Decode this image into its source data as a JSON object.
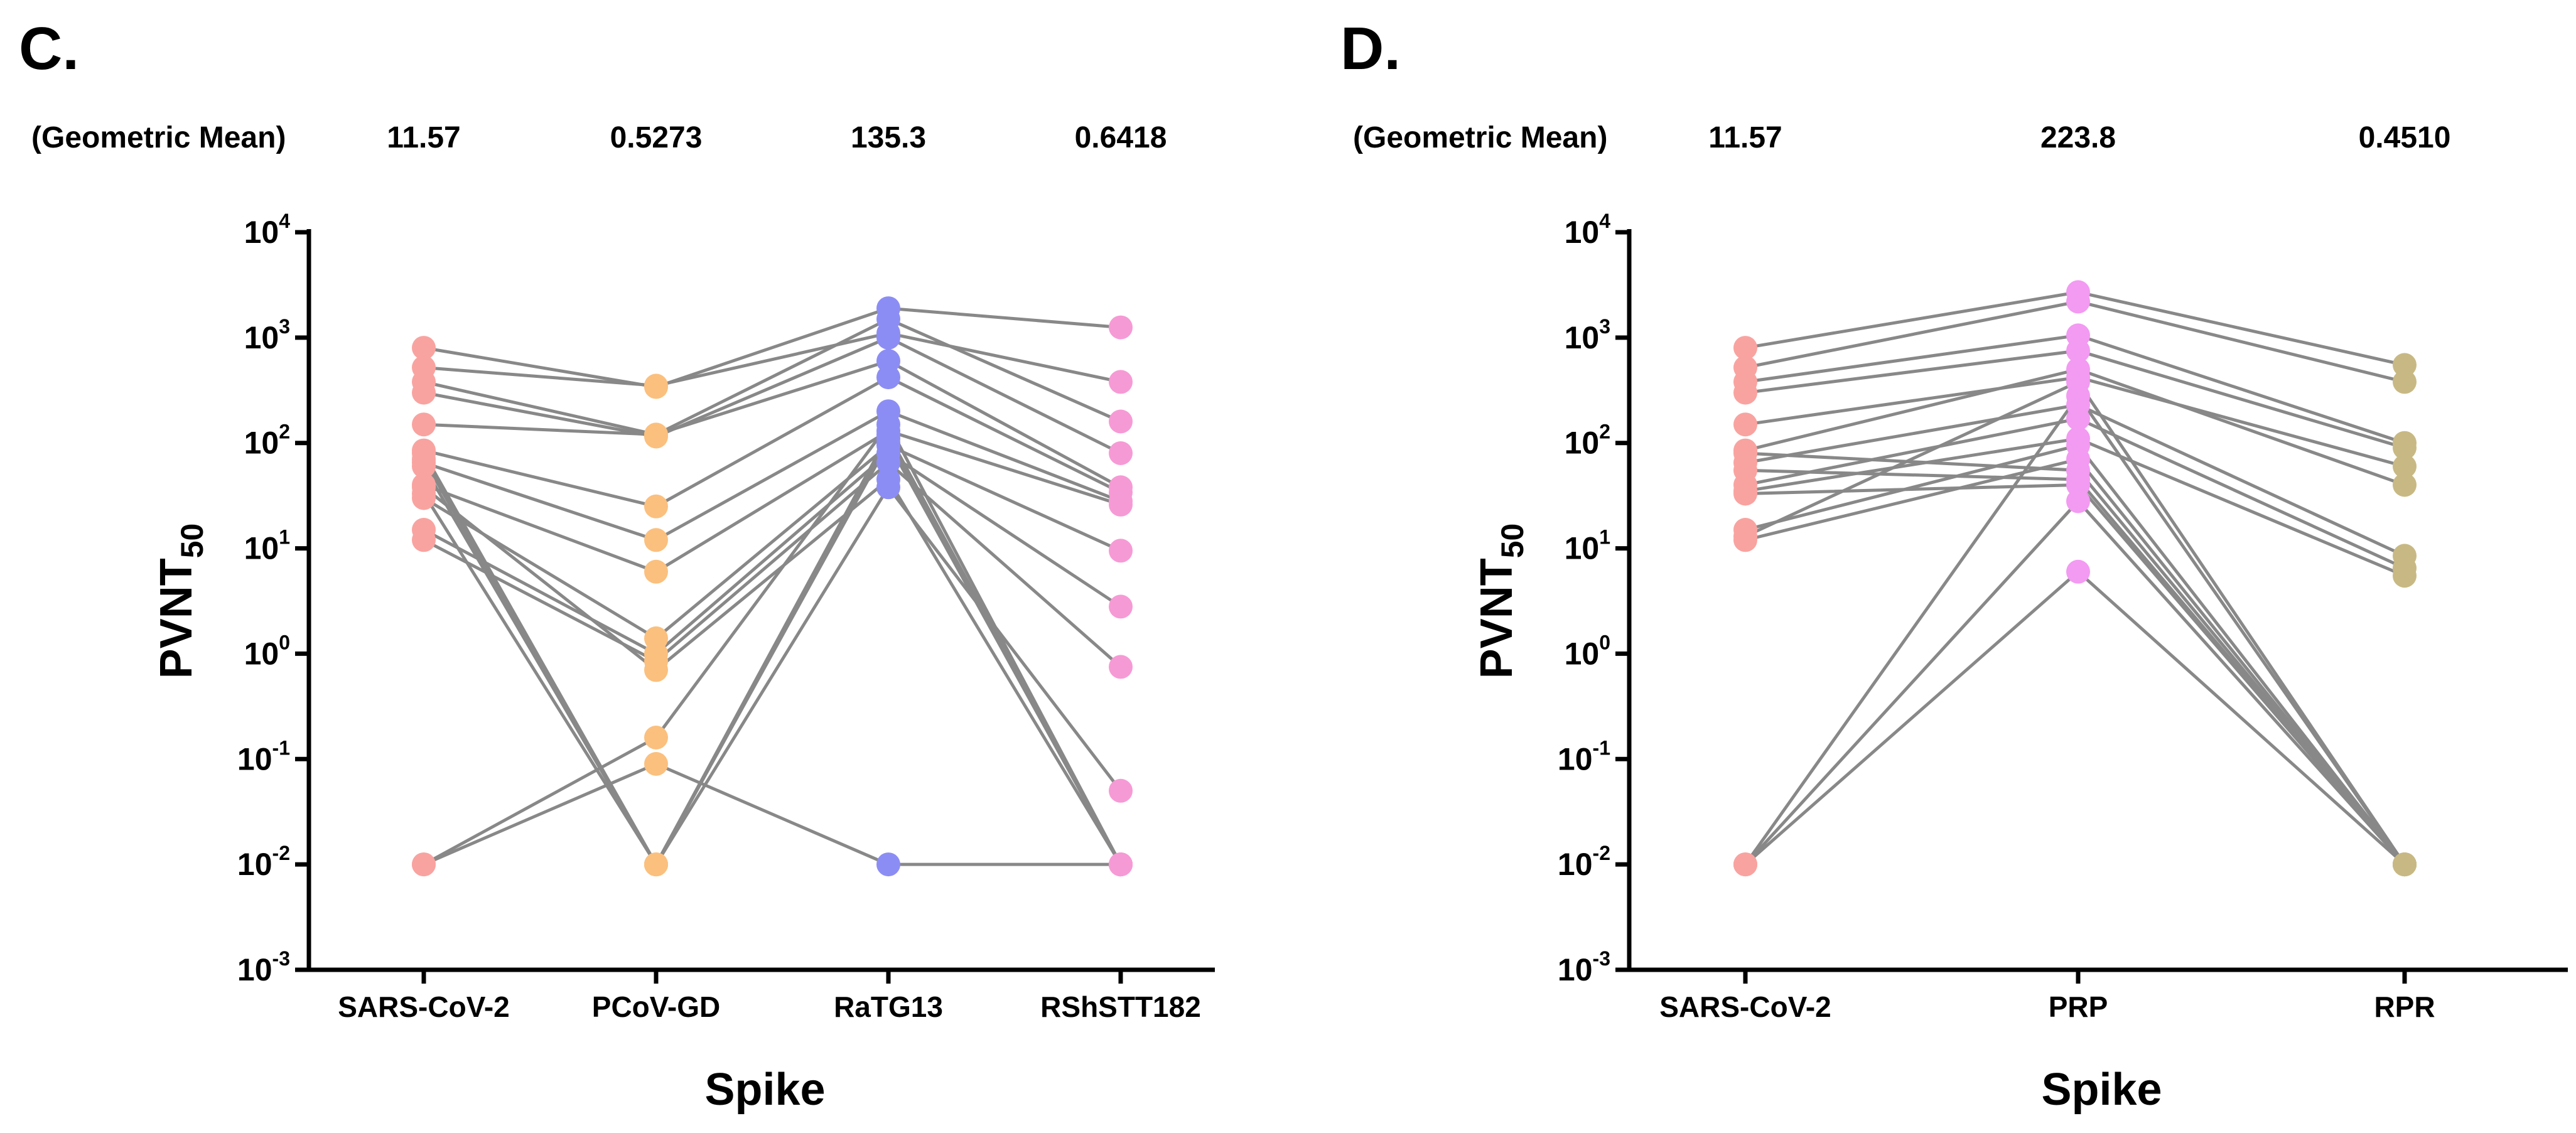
{
  "chart_data": [
    {
      "panel": "C.",
      "type": "scatter",
      "geometric_mean_label": "(Geometric Mean)",
      "categories": [
        "SARS-CoV-2",
        "PCoV-GD",
        "RaTG13",
        "RShSTT182"
      ],
      "geometric_means": [
        "11.57",
        "0.5273",
        "135.3",
        "0.6418"
      ],
      "xlabel": "Spike",
      "ylabel": "PVNT",
      "ylabel_subscript": "50",
      "yscale": "log10",
      "ylim": [
        0.001,
        10000
      ],
      "yticks": [
        {
          "base": "10",
          "exp": "4",
          "value": 10000
        },
        {
          "base": "10",
          "exp": "3",
          "value": 1000
        },
        {
          "base": "10",
          "exp": "2",
          "value": 100
        },
        {
          "base": "10",
          "exp": "1",
          "value": 10
        },
        {
          "base": "10",
          "exp": "0",
          "value": 1
        },
        {
          "base": "10",
          "exp": "-1",
          "value": 0.1
        },
        {
          "base": "10",
          "exp": "-2",
          "value": 0.01
        },
        {
          "base": "10",
          "exp": "-3",
          "value": 0.001
        }
      ],
      "colors": [
        "#f9a3a0",
        "#fbc07e",
        "#8c8df4",
        "#f69ad5"
      ],
      "line_color": "#888888",
      "subjects": [
        [
          800,
          340,
          1900,
          1250
        ],
        [
          520,
          350,
          1100,
          380
        ],
        [
          380,
          120,
          1500,
          160
        ],
        [
          300,
          115,
          1000,
          80
        ],
        [
          150,
          120,
          600,
          38
        ],
        [
          85,
          25,
          420,
          34
        ],
        [
          65,
          12,
          200,
          28
        ],
        [
          40,
          6,
          130,
          26
        ],
        [
          30,
          1.4,
          95,
          9.5
        ],
        [
          15,
          1.0,
          80,
          2.8
        ],
        [
          12,
          0.85,
          65,
          0.75
        ],
        [
          80,
          0.01,
          120,
          0.01
        ],
        [
          70,
          0.01,
          110,
          0.01
        ],
        [
          60,
          0.01,
          100,
          0.01
        ],
        [
          38,
          0.7,
          45,
          0.01
        ],
        [
          33,
          0.01,
          38,
          0.05
        ],
        [
          0.01,
          0.16,
          150,
          0.01
        ],
        [
          0.01,
          0.09,
          0.01,
          0.01
        ]
      ]
    },
    {
      "panel": "D.",
      "type": "scatter",
      "geometric_mean_label": "(Geometric Mean)",
      "categories": [
        "SARS-CoV-2",
        "PRP",
        "RPR"
      ],
      "geometric_means": [
        "11.57",
        "223.8",
        "0.4510"
      ],
      "xlabel": "Spike",
      "ylabel": "PVNT",
      "ylabel_subscript": "50",
      "yscale": "log10",
      "ylim": [
        0.001,
        10000
      ],
      "yticks": [
        {
          "base": "10",
          "exp": "4",
          "value": 10000
        },
        {
          "base": "10",
          "exp": "3",
          "value": 1000
        },
        {
          "base": "10",
          "exp": "2",
          "value": 100
        },
        {
          "base": "10",
          "exp": "1",
          "value": 10
        },
        {
          "base": "10",
          "exp": "0",
          "value": 1
        },
        {
          "base": "10",
          "exp": "-1",
          "value": 0.1
        },
        {
          "base": "10",
          "exp": "-2",
          "value": 0.01
        },
        {
          "base": "10",
          "exp": "-3",
          "value": 0.001
        }
      ],
      "colors": [
        "#f9a3a0",
        "#f39af2",
        "#c8b984"
      ],
      "line_color": "#888888",
      "subjects": [
        [
          800,
          2700,
          550
        ],
        [
          520,
          2200,
          380
        ],
        [
          380,
          1050,
          100
        ],
        [
          300,
          750,
          90
        ],
        [
          150,
          420,
          60
        ],
        [
          85,
          500,
          40
        ],
        [
          65,
          230,
          8.5
        ],
        [
          40,
          170,
          6.5
        ],
        [
          35,
          110,
          5.5
        ],
        [
          15,
          95,
          0.01
        ],
        [
          12,
          70,
          0.01
        ],
        [
          80,
          55,
          0.01
        ],
        [
          55,
          45,
          0.01
        ],
        [
          33,
          40,
          0.01
        ],
        [
          13,
          380,
          0.01
        ],
        [
          0.01,
          280,
          0.01
        ],
        [
          0.01,
          6,
          0.01
        ],
        [
          0.01,
          28,
          0.01
        ]
      ]
    }
  ]
}
